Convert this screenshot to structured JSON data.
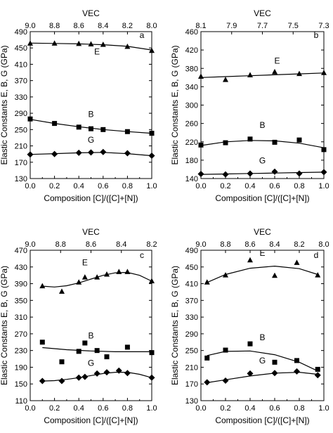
{
  "chart_data": [
    {
      "type": "scatter",
      "panel_label": "a",
      "xlabel": "Composition [C]/([C]+[N])",
      "ylabel": "Elastic Constants E, B, G (GPa)",
      "top_axis_label": "VEC",
      "xlim": [
        0.0,
        1.0
      ],
      "ylim": [
        130,
        490
      ],
      "x_ticks": [
        "0.0",
        "0.2",
        "0.4",
        "0.6",
        "0.8",
        "1.0"
      ],
      "y_ticks": [
        "130",
        "170",
        "210",
        "250",
        "290",
        "330",
        "370",
        "410",
        "450",
        "490"
      ],
      "top_ticks": [
        "9.0",
        "8.8",
        "8.6",
        "8.4",
        "8.2",
        "8.0"
      ],
      "series": [
        {
          "name": "E",
          "marker": "triangle",
          "points": [
            [
              0.0,
              461
            ],
            [
              0.2,
              461
            ],
            [
              0.4,
              460
            ],
            [
              0.5,
              459
            ],
            [
              0.6,
              458
            ],
            [
              0.8,
              453
            ],
            [
              1.0,
              443
            ]
          ],
          "fit": [
            [
              0.0,
              462
            ],
            [
              0.2,
              461
            ],
            [
              0.4,
              460
            ],
            [
              0.6,
              458
            ],
            [
              0.8,
              454
            ],
            [
              1.0,
              445
            ]
          ]
        },
        {
          "name": "B",
          "marker": "square",
          "points": [
            [
              0.0,
              276
            ],
            [
              0.2,
              265
            ],
            [
              0.4,
              256
            ],
            [
              0.5,
              252
            ],
            [
              0.6,
              250
            ],
            [
              0.8,
              245
            ],
            [
              1.0,
              241
            ]
          ],
          "fit": [
            [
              0.0,
              275
            ],
            [
              0.2,
              265
            ],
            [
              0.4,
              257
            ],
            [
              0.6,
              250
            ],
            [
              0.8,
              245
            ],
            [
              1.0,
              241
            ]
          ]
        },
        {
          "name": "G",
          "marker": "diamond",
          "points": [
            [
              0.0,
              189
            ],
            [
              0.2,
              190
            ],
            [
              0.4,
              193
            ],
            [
              0.5,
              194
            ],
            [
              0.6,
              195
            ],
            [
              0.8,
              192
            ],
            [
              1.0,
              186
            ]
          ],
          "fit": [
            [
              0.0,
              189
            ],
            [
              0.2,
              191
            ],
            [
              0.4,
              193
            ],
            [
              0.6,
              194
            ],
            [
              0.8,
              191
            ],
            [
              1.0,
              186
            ]
          ]
        }
      ]
    },
    {
      "type": "scatter",
      "panel_label": "b",
      "xlabel": "Composition [C]/([C]+[N])",
      "ylabel": "Elastic Constants E, B, G (GPa)",
      "top_axis_label": "VEC",
      "xlim": [
        0.0,
        1.0
      ],
      "ylim": [
        140,
        460
      ],
      "x_ticks": [
        "0.0",
        "0.2",
        "0.4",
        "0.6",
        "0.8",
        "1.0"
      ],
      "y_ticks": [
        "140",
        "180",
        "220",
        "260",
        "300",
        "340",
        "380",
        "420",
        "460"
      ],
      "top_ticks": [
        "8.1",
        "7.9",
        "7.7",
        "7.5",
        "7.3"
      ],
      "series": [
        {
          "name": "E",
          "marker": "triangle",
          "points": [
            [
              0.0,
              362
            ],
            [
              0.2,
              355
            ],
            [
              0.4,
              365
            ],
            [
              0.6,
              372
            ],
            [
              0.8,
              368
            ],
            [
              1.0,
              370
            ]
          ],
          "fit": [
            [
              0.0,
              360
            ],
            [
              0.2,
              362
            ],
            [
              0.4,
              364
            ],
            [
              0.6,
              366
            ],
            [
              0.8,
              368
            ],
            [
              1.0,
              370
            ]
          ]
        },
        {
          "name": "B",
          "marker": "square",
          "points": [
            [
              0.0,
              213
            ],
            [
              0.2,
              218
            ],
            [
              0.4,
              226
            ],
            [
              0.6,
              219
            ],
            [
              0.8,
              224
            ],
            [
              1.0,
              203
            ]
          ],
          "fit": [
            [
              0.0,
              212
            ],
            [
              0.2,
              220
            ],
            [
              0.4,
              223
            ],
            [
              0.6,
              222
            ],
            [
              0.8,
              217
            ],
            [
              1.0,
              207
            ]
          ]
        },
        {
          "name": "G",
          "marker": "diamond",
          "points": [
            [
              0.0,
              150
            ],
            [
              0.2,
              149
            ],
            [
              0.4,
              151
            ],
            [
              0.6,
              155
            ],
            [
              0.8,
              151
            ],
            [
              1.0,
              154
            ]
          ],
          "fit": [
            [
              0.0,
              149
            ],
            [
              0.2,
              150
            ],
            [
              0.4,
              151
            ],
            [
              0.6,
              152
            ],
            [
              0.8,
              153
            ],
            [
              1.0,
              154
            ]
          ]
        }
      ]
    },
    {
      "type": "scatter",
      "panel_label": "c",
      "xlabel": "Composition [C]/([C]+[N])",
      "ylabel": "Elastic Constants E, B, G (GPa)",
      "top_axis_label": "VEC",
      "xlim": [
        0.0,
        1.0
      ],
      "ylim": [
        110,
        470
      ],
      "x_ticks": [
        "0.0",
        "0.2",
        "0.4",
        "0.6",
        "0.8",
        "1.0"
      ],
      "y_ticks": [
        "110",
        "150",
        "190",
        "230",
        "270",
        "310",
        "350",
        "390",
        "430",
        "470"
      ],
      "top_ticks": [
        "9.0",
        "8.8",
        "8.6",
        "8.4",
        "8.2"
      ],
      "series": [
        {
          "name": "E",
          "marker": "triangle",
          "points": [
            [
              0.1,
              384
            ],
            [
              0.26,
              371
            ],
            [
              0.4,
              393
            ],
            [
              0.45,
              405
            ],
            [
              0.55,
              405
            ],
            [
              0.63,
              412
            ],
            [
              0.73,
              418
            ],
            [
              0.8,
              418
            ],
            [
              1.0,
              396
            ]
          ],
          "fit": [
            [
              0.1,
              384
            ],
            [
              0.2,
              382
            ],
            [
              0.3,
              385
            ],
            [
              0.4,
              392
            ],
            [
              0.5,
              401
            ],
            [
              0.6,
              410
            ],
            [
              0.7,
              416
            ],
            [
              0.8,
              417
            ],
            [
              0.9,
              410
            ],
            [
              1.0,
              396
            ]
          ]
        },
        {
          "name": "B",
          "marker": "square",
          "points": [
            [
              0.1,
              250
            ],
            [
              0.26,
              203
            ],
            [
              0.4,
              228
            ],
            [
              0.45,
              248
            ],
            [
              0.55,
              230
            ],
            [
              0.63,
              215
            ],
            [
              0.8,
              238
            ],
            [
              1.0,
              225
            ]
          ],
          "fit": [
            [
              0.1,
              237
            ],
            [
              0.3,
              232
            ],
            [
              0.5,
              229
            ],
            [
              0.7,
              227
            ],
            [
              0.9,
              227
            ],
            [
              1.0,
              227
            ]
          ]
        },
        {
          "name": "G",
          "marker": "diamond",
          "points": [
            [
              0.1,
              157
            ],
            [
              0.26,
              157
            ],
            [
              0.4,
              165
            ],
            [
              0.45,
              167
            ],
            [
              0.55,
              175
            ],
            [
              0.63,
              178
            ],
            [
              0.73,
              182
            ],
            [
              0.8,
              176
            ],
            [
              1.0,
              165
            ]
          ],
          "fit": [
            [
              0.1,
              157
            ],
            [
              0.2,
              158
            ],
            [
              0.3,
              161
            ],
            [
              0.4,
              165
            ],
            [
              0.5,
              170
            ],
            [
              0.6,
              175
            ],
            [
              0.7,
              178
            ],
            [
              0.8,
              178
            ],
            [
              0.9,
              173
            ],
            [
              1.0,
              165
            ]
          ]
        }
      ]
    },
    {
      "type": "scatter",
      "panel_label": "d",
      "xlabel": "Composition [C]/([C]+[N])",
      "ylabel": "Elastic Constants E, B, G (GPa)",
      "top_axis_label": "VEC",
      "xlim": [
        0.0,
        1.0
      ],
      "ylim": [
        130,
        490
      ],
      "x_ticks": [
        "0.0",
        "0.2",
        "0.4",
        "0.6",
        "0.8",
        "1.0"
      ],
      "y_ticks": [
        "130",
        "170",
        "210",
        "250",
        "290",
        "330",
        "370",
        "410",
        "450",
        "490"
      ],
      "top_ticks": [
        "9.0",
        "8.8",
        "8.6",
        "8.4",
        "8.2",
        "8.0"
      ],
      "series": [
        {
          "name": "E",
          "marker": "triangle",
          "points": [
            [
              0.05,
              413
            ],
            [
              0.2,
              430
            ],
            [
              0.4,
              466
            ],
            [
              0.6,
              429
            ],
            [
              0.78,
              460
            ],
            [
              0.95,
              430
            ]
          ],
          "fit": [
            [
              0.05,
              413
            ],
            [
              0.2,
              432
            ],
            [
              0.4,
              447
            ],
            [
              0.6,
              452
            ],
            [
              0.8,
              446
            ],
            [
              0.95,
              432
            ]
          ]
        },
        {
          "name": "B",
          "marker": "square",
          "points": [
            [
              0.05,
              232
            ],
            [
              0.2,
              251
            ],
            [
              0.4,
              266
            ],
            [
              0.6,
              222
            ],
            [
              0.78,
              226
            ],
            [
              0.95,
              205
            ]
          ],
          "fit": [
            [
              0.05,
              238
            ],
            [
              0.2,
              248
            ],
            [
              0.4,
              249
            ],
            [
              0.6,
              240
            ],
            [
              0.8,
              222
            ],
            [
              0.95,
              201
            ]
          ]
        },
        {
          "name": "G",
          "marker": "diamond",
          "points": [
            [
              0.05,
              174
            ],
            [
              0.2,
              178
            ],
            [
              0.4,
              195
            ],
            [
              0.6,
              196
            ],
            [
              0.78,
              200
            ],
            [
              0.95,
              191
            ]
          ],
          "fit": [
            [
              0.05,
              173
            ],
            [
              0.2,
              180
            ],
            [
              0.4,
              189
            ],
            [
              0.6,
              196
            ],
            [
              0.8,
              198
            ],
            [
              0.95,
              193
            ]
          ]
        }
      ]
    }
  ]
}
